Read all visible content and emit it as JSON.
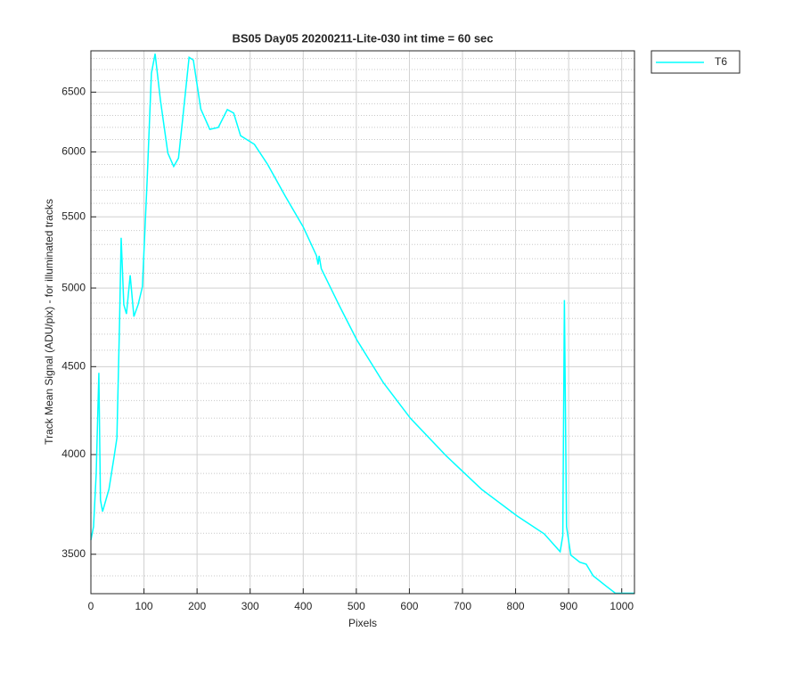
{
  "chart_data": {
    "type": "line",
    "title": "BS05 Day05 20200211-Lite-030 int time = 60 sec",
    "xlabel": "Pixels",
    "ylabel": "Track Mean Signal (ADU/pix) - for illuminated tracks",
    "x": [
      0,
      5,
      10,
      15,
      18,
      22,
      34,
      44,
      49,
      54,
      57,
      62,
      67,
      74,
      81,
      89,
      97,
      106,
      114,
      121,
      131,
      145,
      156,
      165,
      173,
      185,
      193,
      207,
      224,
      240,
      257,
      269,
      282,
      308,
      333,
      366,
      400,
      425,
      428,
      430,
      434,
      467,
      501,
      551,
      602,
      669,
      736,
      803,
      854,
      884,
      889,
      892,
      896,
      904,
      921,
      933,
      946,
      971,
      988,
      1024
    ],
    "series": [
      {
        "name": "T6",
        "color": "#00ffff",
        "values": [
          3567,
          3632,
          3900,
          4463,
          3764,
          3706,
          3818,
          3994,
          4090,
          4775,
          5348,
          4890,
          4829,
          5086,
          4812,
          4890,
          5008,
          5778,
          6667,
          6843,
          6430,
          5990,
          5884,
          5950,
          6275,
          6810,
          6785,
          6355,
          6184,
          6200,
          6350,
          6320,
          6131,
          6061,
          5900,
          5656,
          5426,
          5221,
          5160,
          5220,
          5131,
          4890,
          4664,
          4404,
          4199,
          3994,
          3818,
          3684,
          3597,
          3512,
          3589,
          4920,
          3632,
          3496,
          3463,
          3454,
          3401,
          3353,
          3322,
          3322
        ]
      }
    ],
    "xlim": [
      0,
      1024
    ],
    "ylim": [
      3320,
      6870
    ],
    "xticks": [
      0,
      100,
      200,
      300,
      400,
      500,
      600,
      700,
      800,
      900,
      1000
    ],
    "yticks": [
      3500,
      4000,
      4500,
      5000,
      5500,
      6000,
      6500
    ],
    "yminor_ticks": [
      3400,
      3600,
      3700,
      3800,
      3900,
      4100,
      4200,
      4300,
      4400,
      4600,
      4700,
      4800,
      4900,
      5100,
      5200,
      5300,
      5400,
      5600,
      5700,
      5800,
      5900,
      6100,
      6200,
      6300,
      6400,
      6600,
      6700,
      6800
    ],
    "ylog": true,
    "grid": true,
    "legend": "outside-top-right"
  }
}
